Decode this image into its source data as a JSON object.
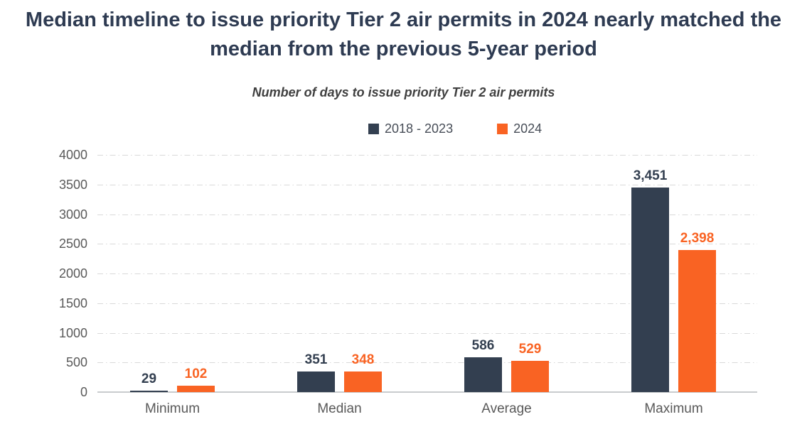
{
  "chart_data": {
    "type": "bar",
    "title": "Median timeline to issue priority Tier 2 air permits in 2024 nearly matched the median from the previous 5-year period",
    "subtitle": "Number of days to issue priority Tier 2 air permits",
    "categories": [
      "Minimum",
      "Median",
      "Average",
      "Maximum"
    ],
    "series": [
      {
        "name": "2018 - 2023",
        "color": "#333F50",
        "values": [
          29,
          351,
          586,
          3451
        ],
        "value_labels": [
          "29",
          "351",
          "586",
          "3,451"
        ]
      },
      {
        "name": "2024",
        "color": "#F96323",
        "values": [
          102,
          348,
          529,
          2398
        ],
        "value_labels": [
          "102",
          "348",
          "529",
          "2,398"
        ]
      }
    ],
    "xlabel": "",
    "ylabel": "",
    "ylim": [
      0,
      4000
    ],
    "ytick_step": 500,
    "yticks": [
      0,
      500,
      1000,
      1500,
      2000,
      2500,
      3000,
      3500,
      4000
    ],
    "grid": "horizontal-dash-dot",
    "legend_position": "top-center",
    "colors": {
      "title": "#2E3B52",
      "subtitle": "#404040",
      "legend_text": "#474D57",
      "tick_label": "#595959",
      "category_label": "#595959",
      "gridline": "#D9D9D9",
      "axis_line": "#C9CCCE",
      "background": "#FFFFFF"
    }
  }
}
